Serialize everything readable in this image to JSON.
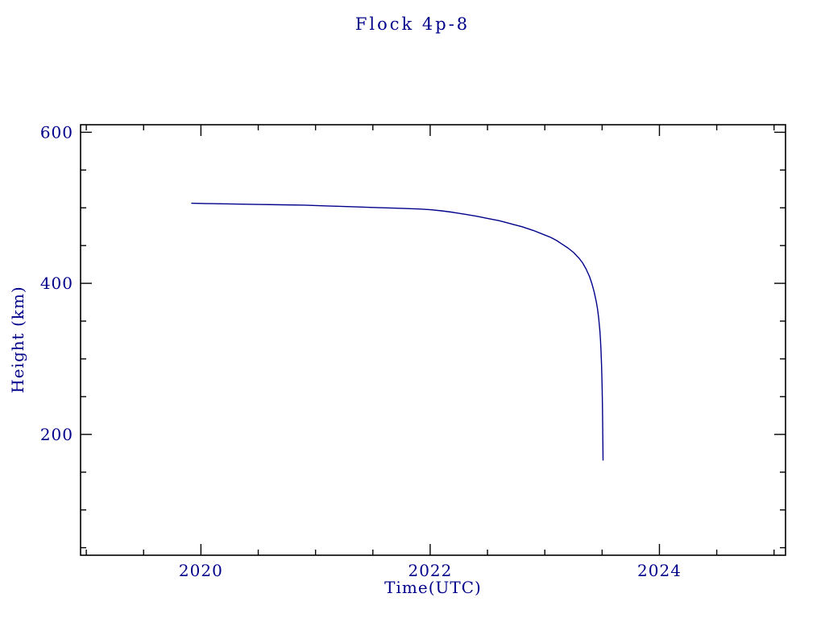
{
  "colors": {
    "ink": "#00008B",
    "frame": "#000000",
    "curve": "#00008B",
    "background": "#FFFFFF"
  },
  "chart_data": {
    "type": "line",
    "title": "Flock 4p-8",
    "xlabel": "Time(UTC)",
    "ylabel": "Height (km)",
    "xlim": [
      2018.95,
      2025.1
    ],
    "ylim": [
      40,
      610
    ],
    "grid": false,
    "legend": "none",
    "x_ticks": [
      2020,
      2022,
      2024
    ],
    "x_tick_labels": [
      "2020",
      "2022",
      "2024"
    ],
    "y_ticks": [
      200,
      400,
      600
    ],
    "y_tick_labels": [
      "200",
      "400",
      "600"
    ],
    "x_minor_step": 0.5,
    "y_minor_step": 50,
    "series": [
      {
        "name": "orbital-height",
        "points": [
          [
            2019.92,
            506
          ],
          [
            2020.1,
            505.5
          ],
          [
            2020.3,
            505
          ],
          [
            2020.5,
            504.5
          ],
          [
            2020.7,
            504
          ],
          [
            2020.9,
            503.5
          ],
          [
            2021.1,
            502.5
          ],
          [
            2021.3,
            501.5
          ],
          [
            2021.5,
            500.5
          ],
          [
            2021.7,
            499.5
          ],
          [
            2021.9,
            498.5
          ],
          [
            2022.0,
            497.5
          ],
          [
            2022.1,
            496
          ],
          [
            2022.2,
            494
          ],
          [
            2022.3,
            491.5
          ],
          [
            2022.4,
            489
          ],
          [
            2022.5,
            486
          ],
          [
            2022.6,
            483
          ],
          [
            2022.7,
            479
          ],
          [
            2022.8,
            475
          ],
          [
            2022.9,
            470
          ],
          [
            2023.0,
            464
          ],
          [
            2023.05,
            461
          ],
          [
            2023.1,
            457
          ],
          [
            2023.15,
            452
          ],
          [
            2023.2,
            447
          ],
          [
            2023.25,
            441
          ],
          [
            2023.3,
            433
          ],
          [
            2023.33,
            427
          ],
          [
            2023.36,
            419
          ],
          [
            2023.39,
            409
          ],
          [
            2023.41,
            400
          ],
          [
            2023.43,
            389
          ],
          [
            2023.45,
            375
          ],
          [
            2023.46,
            366
          ],
          [
            2023.47,
            354
          ],
          [
            2023.48,
            338
          ],
          [
            2023.485,
            327
          ],
          [
            2023.49,
            312
          ],
          [
            2023.495,
            292
          ],
          [
            2023.5,
            263
          ],
          [
            2023.503,
            237
          ],
          [
            2023.505,
            210
          ],
          [
            2023.507,
            183
          ],
          [
            2023.508,
            166
          ]
        ]
      }
    ]
  }
}
